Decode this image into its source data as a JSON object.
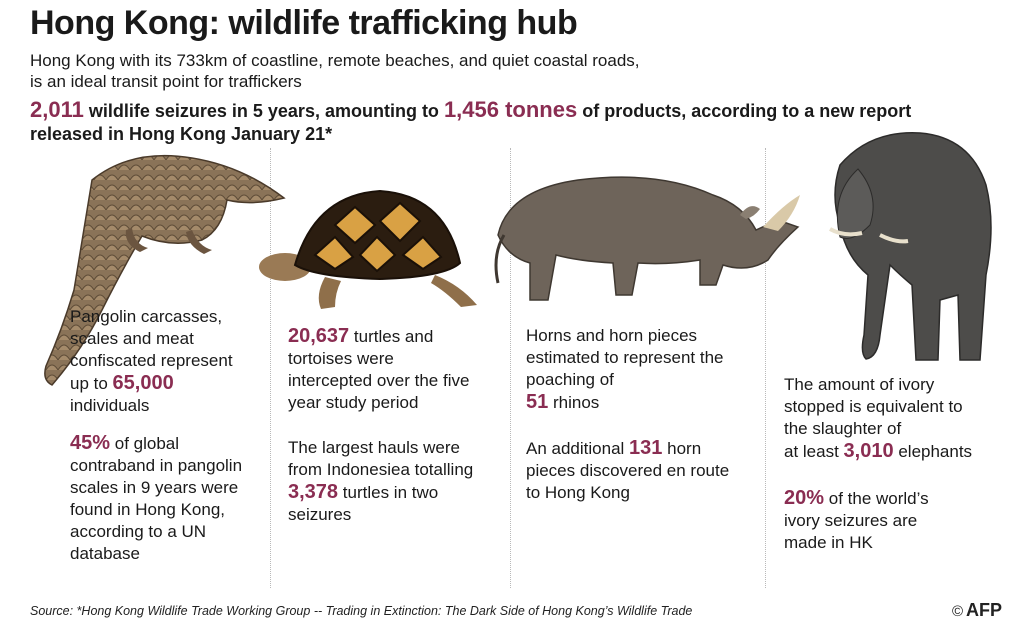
{
  "title": "Hong Kong: wildlife trafficking hub",
  "intro": {
    "line1": "Hong Kong with its 733km of coastline, remote beaches, and quiet coastal roads,",
    "line2": "is an ideal transit point for traffickers"
  },
  "headline": {
    "seizures": "2,011",
    "part1": " wildlife seizures in 5 years, amounting to ",
    "tonnes": "1,456 tonnes",
    "part2": " of products, according to a new report",
    "line2": "released in Hong Kong January 21*"
  },
  "pangolin": {
    "text1": "Pangolin carcasses, scales and meat confiscated represent",
    "prefix1": "up to ",
    "num1": "65,000",
    "suffix1": "individuals",
    "num2": "45%",
    "text2": " of global contraband in pangolin scales in 9 years were found in Hong Kong, according to a UN database"
  },
  "turtle": {
    "num1": "20,637",
    "text1": " turtles and tortoises were intercepted over the five year study period",
    "text2": "The largest hauls were from Indonesiea totalling ",
    "num2": "3,378",
    "text3": " turtles in two seizures"
  },
  "rhino": {
    "text1": "Horns and horn pieces estimated to represent the poaching of",
    "num1": "51",
    "suffix1": " rhinos",
    "text2": "An additional ",
    "num2": "131",
    "text3": " horn pieces discovered en route to Hong Kong"
  },
  "elephant": {
    "text1": "The amount of ivory stopped is equivalent to the slaughter of",
    "prefix1": "at least ",
    "num1": "3,010",
    "suffix1": " elephants",
    "num2": "20%",
    "text2": " of the world’s ivory seizures are made in HK"
  },
  "source": "Source: *Hong Kong Wildlife Trade Working Group -- Trading in Extinction: The Dark Side of Hong Kong’s Wildlife Trade",
  "credit": {
    "symbol": "©",
    "name": "AFP"
  },
  "colors": {
    "accent": "#8a2d52",
    "text": "#1a1a1a"
  }
}
